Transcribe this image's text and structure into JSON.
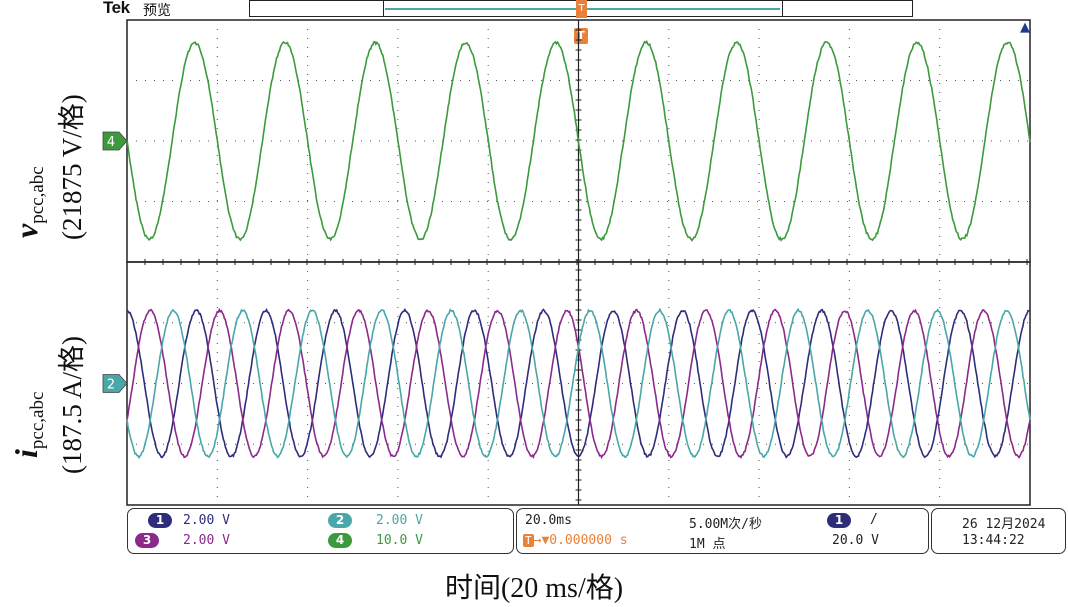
{
  "header": {
    "logo": "Tek",
    "mode": "预览",
    "trigger_marker": "T"
  },
  "colors": {
    "ch1": "#2d2d7a",
    "ch2": "#4aa7a7",
    "ch3": "#8b2a8b",
    "ch4": "#3c9a3c",
    "trigger": "#e8823a"
  },
  "icons": {
    "trigger_level": "trigger-level-arrow-icon",
    "ch4_ground": "ch4-ground-marker-icon",
    "ch2_ground": "ch2-ground-marker-icon",
    "trigger_position": "trigger-position-icon"
  },
  "labels": {
    "y_top_symbol": "v",
    "y_top_sub": "pcc,abc",
    "y_top_scale": "(21875 V/格)",
    "y_bottom_symbol": "i",
    "y_bottom_sub": "pcc,abc",
    "y_bottom_scale": "(187.5 A/格)",
    "x_axis": "时间(20 ms/格)"
  },
  "channels": [
    {
      "id": "1",
      "scale": "2.00 V"
    },
    {
      "id": "2",
      "scale": "2.00 V"
    },
    {
      "id": "3",
      "scale": "2.00 V"
    },
    {
      "id": "4",
      "scale": "10.0 V"
    }
  ],
  "acquisition": {
    "timebase": "20.0ms",
    "sample_rate": "5.00M次/秒",
    "trigger_offset": "0.000000 s",
    "record_length": "1M 点",
    "trigger_channel": "1",
    "trigger_slope": "/",
    "trigger_level": "20.0 V"
  },
  "timestamp": {
    "date": "26 12月2024",
    "time": "13:44:22"
  },
  "chart_data": {
    "type": "line",
    "xlabel": "时间(20 ms/格)",
    "x_divisions": 10,
    "x_range_ms": [
      0,
      200
    ],
    "grid": true,
    "panels": [
      {
        "name": "voltage",
        "ylabel": "v pcc,abc (21875 V/格)",
        "y_range_div": [
          -1.6,
          1.6
        ],
        "series": [
          {
            "color": "#3c9a3c",
            "frequency_hz": 50,
            "amplitude_div": 1.3,
            "phase_deg": 180
          }
        ]
      },
      {
        "name": "current",
        "ylabel": "i pcc,abc (187.5 A/格)",
        "y_range_div": [
          -2.0,
          2.0
        ],
        "series": [
          {
            "color": "#2d2d7a",
            "frequency_hz": 65,
            "amplitude_div": 1.2,
            "phase_deg": 90
          },
          {
            "color": "#8b2a8b",
            "frequency_hz": 65,
            "amplitude_div": 1.2,
            "phase_deg": -30
          },
          {
            "color": "#4aa7a7",
            "frequency_hz": 65,
            "amplitude_div": 1.2,
            "phase_deg": 210
          }
        ]
      }
    ]
  }
}
